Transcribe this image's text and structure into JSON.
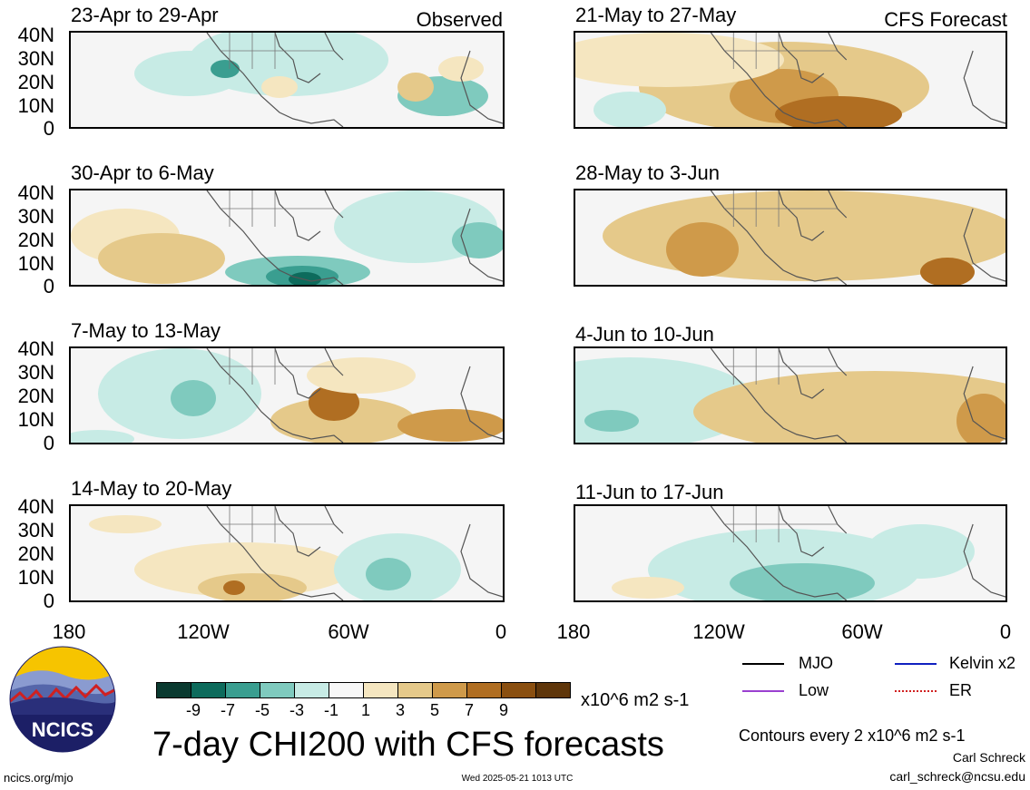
{
  "labels": {
    "observed": "Observed",
    "forecast": "CFS Forecast"
  },
  "panels": [
    {
      "id": "obs-1",
      "title": "23-Apr to 29-Apr"
    },
    {
      "id": "obs-2",
      "title": "30-Apr to 6-May"
    },
    {
      "id": "obs-3",
      "title": "7-May to 13-May"
    },
    {
      "id": "obs-4",
      "title": "14-May to 20-May"
    },
    {
      "id": "fc-1",
      "title": "21-May to 27-May"
    },
    {
      "id": "fc-2",
      "title": "28-May to 3-Jun"
    },
    {
      "id": "fc-3",
      "title": "4-Jun to 10-Jun"
    },
    {
      "id": "fc-4",
      "title": "11-Jun to 17-Jun"
    }
  ],
  "lat_ticks": [
    "40N",
    "30N",
    "20N",
    "10N",
    "0"
  ],
  "lon_ticks": [
    "180",
    "120W",
    "60W",
    "0"
  ],
  "colorbar": {
    "colors": [
      "#0a3a30",
      "#0d6b5c",
      "#3a9e90",
      "#7fcabe",
      "#c7ebe5",
      "#f7f7f7",
      "#f5e6c0",
      "#e5c98a",
      "#cf9a4a",
      "#b06e22",
      "#8a4f10",
      "#5f360a"
    ],
    "labels": [
      "-9",
      "-7",
      "-5",
      "-3",
      "-1",
      "1",
      "3",
      "5",
      "7",
      "9"
    ],
    "units": "x10^6 m2 s-1"
  },
  "legend": [
    {
      "label": "MJO",
      "color": "#000000",
      "style": "solid"
    },
    {
      "label": "Kelvin x2",
      "color": "#1020c0",
      "style": "solid"
    },
    {
      "label": "Low",
      "color": "#9a40d0",
      "style": "solid"
    },
    {
      "label": "ER",
      "color": "#d02020",
      "style": "dotted"
    }
  ],
  "main_title": "7-day CHI200 with CFS forecasts",
  "contours_note": "Contours every 2 x10^6 m2 s-1",
  "logo_text": "NCICS",
  "url": "ncics.org/mjo",
  "timestamp": "Wed 2025-05-21 1013 UTC",
  "author": "Carl Schreck",
  "email": "carl_schreck@ncsu.edu"
}
